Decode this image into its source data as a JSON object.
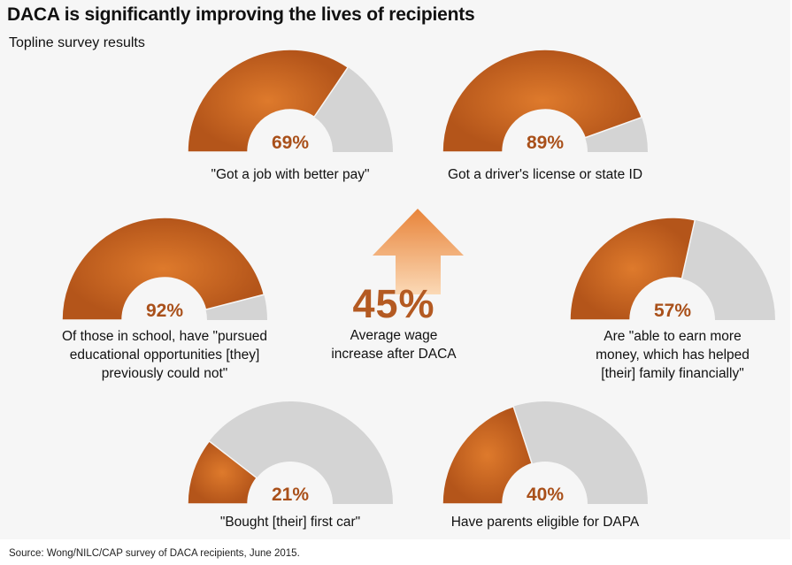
{
  "title": "DACA is significantly improving the lives of recipients",
  "subtitle": "Topline survey results",
  "colors": {
    "filled": "#c4601e",
    "remaining": "#d4d4d4",
    "label": "#a9501a",
    "arrow": "#f0a766"
  },
  "chart_data": [
    {
      "type": "gauge",
      "value": 69,
      "label": "69%",
      "caption": "\"Got a job with better pay\""
    },
    {
      "type": "gauge",
      "value": 89,
      "label": "89%",
      "caption": "Got a driver's license or state ID"
    },
    {
      "type": "gauge",
      "value": 92,
      "label": "92%",
      "caption_lines": [
        "Of those in school, have \"pursued",
        "educational opportunities [they]",
        "previously could not\""
      ]
    },
    {
      "type": "gauge",
      "value": 57,
      "label": "57%",
      "caption_lines": [
        "Are \"able to earn more",
        "money, which has helped",
        "[their] family financially\""
      ]
    },
    {
      "type": "gauge",
      "value": 21,
      "label": "21%",
      "caption": "\"Bought [their] first car\""
    },
    {
      "type": "gauge",
      "value": 40,
      "label": "40%",
      "caption": "Have parents eligible for DAPA"
    }
  ],
  "highlight": {
    "value": "45%",
    "caption_lines": [
      "Average wage",
      "increase after DACA"
    ]
  },
  "source": "Source: Wong/NILC/CAP survey of DACA recipients, June 2015."
}
